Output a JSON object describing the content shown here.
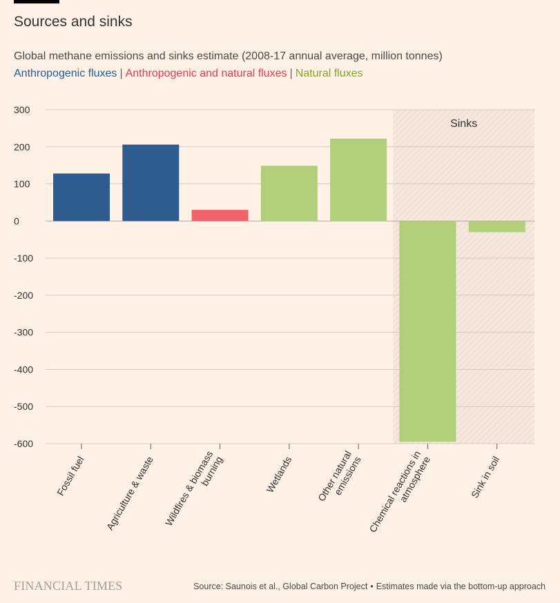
{
  "header": {
    "title": "Sources and sinks",
    "subtitle": "Global methane emissions and sinks estimate (2008-17 annual average, million tonnes)"
  },
  "legend": {
    "separator": "|",
    "items": [
      {
        "label": "Anthropogenic fluxes",
        "color": "#1f5c99"
      },
      {
        "label": "Anthropogenic and natural fluxes",
        "color": "#e03b4b"
      },
      {
        "label": "Natural fluxes",
        "color": "#7fa42a"
      }
    ]
  },
  "chart_data": {
    "type": "bar",
    "title": "Sources and sinks",
    "ylim": [
      -600,
      300
    ],
    "yticks": [
      300,
      200,
      100,
      0,
      -100,
      -200,
      -300,
      -400,
      -500,
      -600
    ],
    "ytick_labels": [
      "300",
      "200",
      "100",
      "0",
      "-100",
      "-200",
      "-300",
      "-400",
      "-500",
      "-600"
    ],
    "grid": true,
    "region_label": "Sinks",
    "region_categories": [
      "Chemical reactions in atmosphere",
      "Sink in soil"
    ],
    "categories": [
      "Fossil fuel",
      "Agriculture & waste",
      "Wildfires & biomass burning",
      "Wetlands",
      "Other natural emissions",
      "Chemical reactions in atmosphere",
      "Sink in soil"
    ],
    "category_label_lines": [
      [
        "Fossil fuel"
      ],
      [
        "Agriculture & waste"
      ],
      [
        "Wildfires & biomass",
        "burning"
      ],
      [
        "Wetlands"
      ],
      [
        "Other natural",
        "emissions"
      ],
      [
        "Chemical reactions in",
        "atmosphere"
      ],
      [
        "Sink in soil"
      ]
    ],
    "values": [
      128,
      206,
      30,
      149,
      222,
      -595,
      -30
    ],
    "flux_type": [
      "Anthropogenic fluxes",
      "Anthropogenic fluxes",
      "Anthropogenic and natural fluxes",
      "Natural fluxes",
      "Natural fluxes",
      "Natural fluxes",
      "Natural fluxes"
    ],
    "bar_colors": [
      "#2e5c8e",
      "#2e5c8e",
      "#f1636b",
      "#b1ce79",
      "#b1ce79",
      "#b1ce79",
      "#b1ce79"
    ]
  },
  "footer": {
    "logo": "FINANCIAL TIMES",
    "source": "Source: Saunois et al., Global Carbon Project",
    "bullet": "•",
    "note": "Estimates made via the bottom-up approach"
  }
}
